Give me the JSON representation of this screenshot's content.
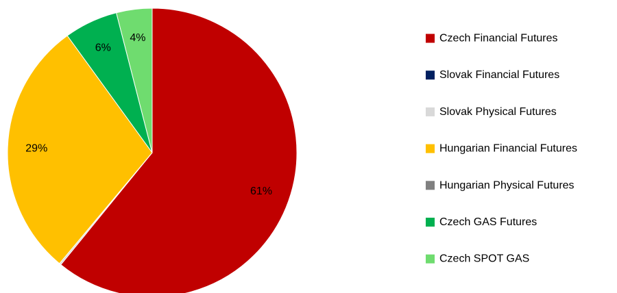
{
  "chart_data": {
    "type": "pie",
    "title": "",
    "start_angle_deg": 0,
    "direction": "clockwise",
    "legend_position": "right",
    "slices": [
      {
        "name": "Czech Financial Futures",
        "value": 61,
        "label": "61%",
        "color": "#c00000"
      },
      {
        "name": "Slovak Financial Futures",
        "value": 0,
        "label": "",
        "color": "#002060"
      },
      {
        "name": "Slovak Physical Futures",
        "value": 0.2,
        "label": "",
        "color": "#d9d9d9"
      },
      {
        "name": "Hungarian Financial Futures",
        "value": 29,
        "label": "29%",
        "color": "#ffc000"
      },
      {
        "name": "Hungarian Physical Futures",
        "value": 0,
        "label": "",
        "color": "#808080"
      },
      {
        "name": "Czech GAS Futures",
        "value": 6,
        "label": "6%",
        "color": "#00b050"
      },
      {
        "name": "Czech SPOT GAS",
        "value": 4,
        "label": "4%",
        "color": "#6fdc6f"
      }
    ]
  }
}
